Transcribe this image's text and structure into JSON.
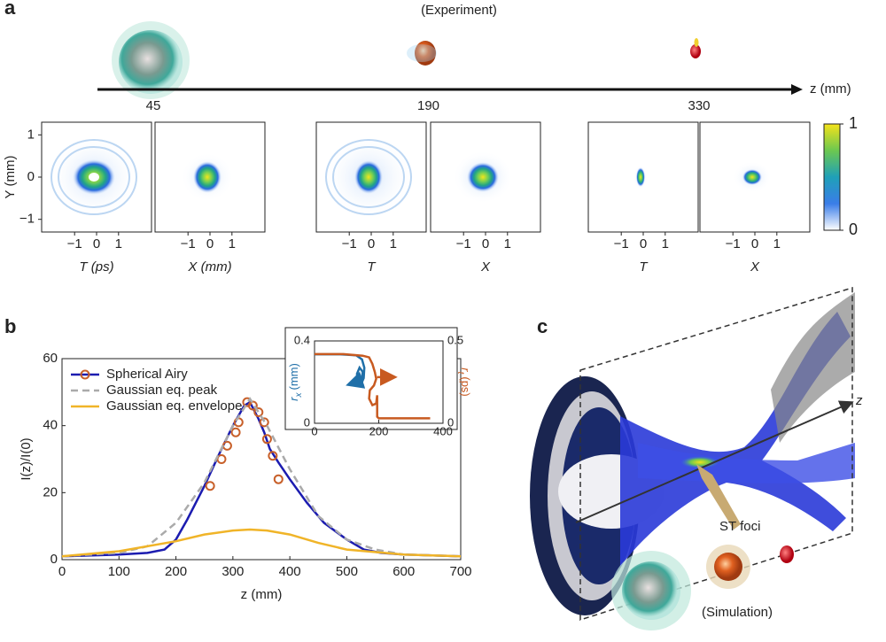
{
  "figure": {
    "panel_a": {
      "label": "a",
      "subtitle": "(Experiment)",
      "axis": "z (mm)",
      "positions": [
        45,
        190,
        330
      ],
      "heatmaps": {
        "xlim": [
          -2.5,
          2.5
        ],
        "xticks": [
          {
            "value": -1,
            "label": "−1"
          },
          0,
          1
        ],
        "ylim": [
          -1.3,
          1.3
        ],
        "yticks": [
          {
            "value": 1,
            "label": "1"
          },
          0,
          {
            "value": -1,
            "label": "−1"
          }
        ],
        "ylabel": "Y (mm)",
        "xlabels": [
          "T (ps)",
          "X (mm)",
          "T",
          "X",
          "T",
          "X"
        ]
      },
      "colorbar": {
        "lim": [
          0,
          1
        ],
        "ticks": [
          0,
          1
        ]
      }
    },
    "panel_b": {
      "label": "b"
    },
    "panel_c": {
      "label": "c",
      "axis": "z",
      "annotation": "ST foci",
      "caption": "(Simulation)"
    }
  },
  "chart_data": [
    {
      "type": "line",
      "xlabel": "z (mm)",
      "ylabel": "I(z)/I(0)",
      "xlim": [
        0,
        700
      ],
      "ylim": [
        0,
        60
      ],
      "xticks": [
        0,
        100,
        200,
        300,
        400,
        500,
        600,
        700
      ],
      "yticks": [
        0,
        20,
        40,
        60
      ],
      "series": [
        {
          "name": "Spherical Airy",
          "color": "#1c1cb0",
          "x": [
            0,
            100,
            150,
            180,
            200,
            220,
            250,
            280,
            300,
            320,
            330,
            345,
            355,
            365,
            380,
            400,
            430,
            460,
            500,
            530,
            560,
            600,
            700
          ],
          "values": [
            1,
            1.5,
            2,
            3,
            6,
            12,
            22,
            33,
            40,
            46,
            47,
            42,
            38,
            33,
            29,
            24,
            17,
            11,
            6,
            3,
            2,
            1.5,
            1
          ],
          "points": {
            "color": "#c8602a",
            "x": [
              260,
              280,
              290,
              305,
              310,
              325,
              335,
              345,
              355,
              360,
              370,
              380
            ],
            "values": [
              22,
              30,
              34,
              38,
              41,
              47,
              46,
              44,
              41,
              36,
              31,
              24
            ]
          }
        },
        {
          "name": "Gaussian eq. peak",
          "color": "#aaaaaa",
          "dashed": true,
          "x": [
            0,
            100,
            150,
            200,
            250,
            300,
            330,
            360,
            400,
            450,
            500,
            550,
            600,
            700
          ],
          "values": [
            1,
            2,
            4,
            11,
            23,
            40,
            48,
            40,
            27,
            13,
            6,
            3,
            1.5,
            1
          ]
        },
        {
          "name": "Gaussian eq. envelope",
          "color": "#f0b428",
          "x": [
            0,
            100,
            200,
            250,
            300,
            330,
            360,
            400,
            450,
            500,
            600,
            700
          ],
          "values": [
            1,
            2.5,
            5.5,
            7.5,
            8.7,
            9,
            8.7,
            7.5,
            5,
            3,
            1.5,
            1
          ]
        }
      ]
    },
    {
      "type": "line",
      "xlim": [
        0,
        400
      ],
      "xticks": [
        0,
        200,
        400
      ],
      "ylim": [
        0,
        0.4
      ],
      "yticks": [
        0,
        0.4
      ],
      "y2lim": [
        0,
        0.5
      ],
      "y2ticks": [
        0,
        0.5
      ],
      "ylabel": {
        "symbol": "r",
        "subscript": "x",
        "unit": "(mm)"
      },
      "y2label": {
        "symbol": "r",
        "subscript": "t",
        "unit": "(ps)"
      },
      "series": [
        {
          "color": "#1f6fa8",
          "x": [
            0,
            80,
            130,
            148,
            155,
            153,
            145,
            135,
            132,
            140,
            150,
            148,
            130,
            110
          ],
          "values": [
            0.335,
            0.335,
            0.33,
            0.31,
            0.27,
            0.22,
            0.19,
            0.2,
            0.24,
            0.27,
            0.25,
            0.22,
            0.2,
            0.19
          ]
        },
        {
          "color": "#c85a20",
          "axis": "y2",
          "x": [
            0,
            90,
            150,
            170,
            180,
            188,
            192,
            185,
            172,
            170,
            180,
            192,
            195,
            195,
            200,
            280,
            360,
            null,
            195,
            245
          ],
          "values": [
            0.42,
            0.42,
            0.41,
            0.4,
            0.36,
            0.31,
            0.27,
            0.23,
            0.2,
            0.15,
            0.11,
            0.12,
            0.17,
            0.04,
            0.03,
            0.03,
            0.03,
            null,
            0.28,
            0.28
          ]
        }
      ]
    }
  ]
}
